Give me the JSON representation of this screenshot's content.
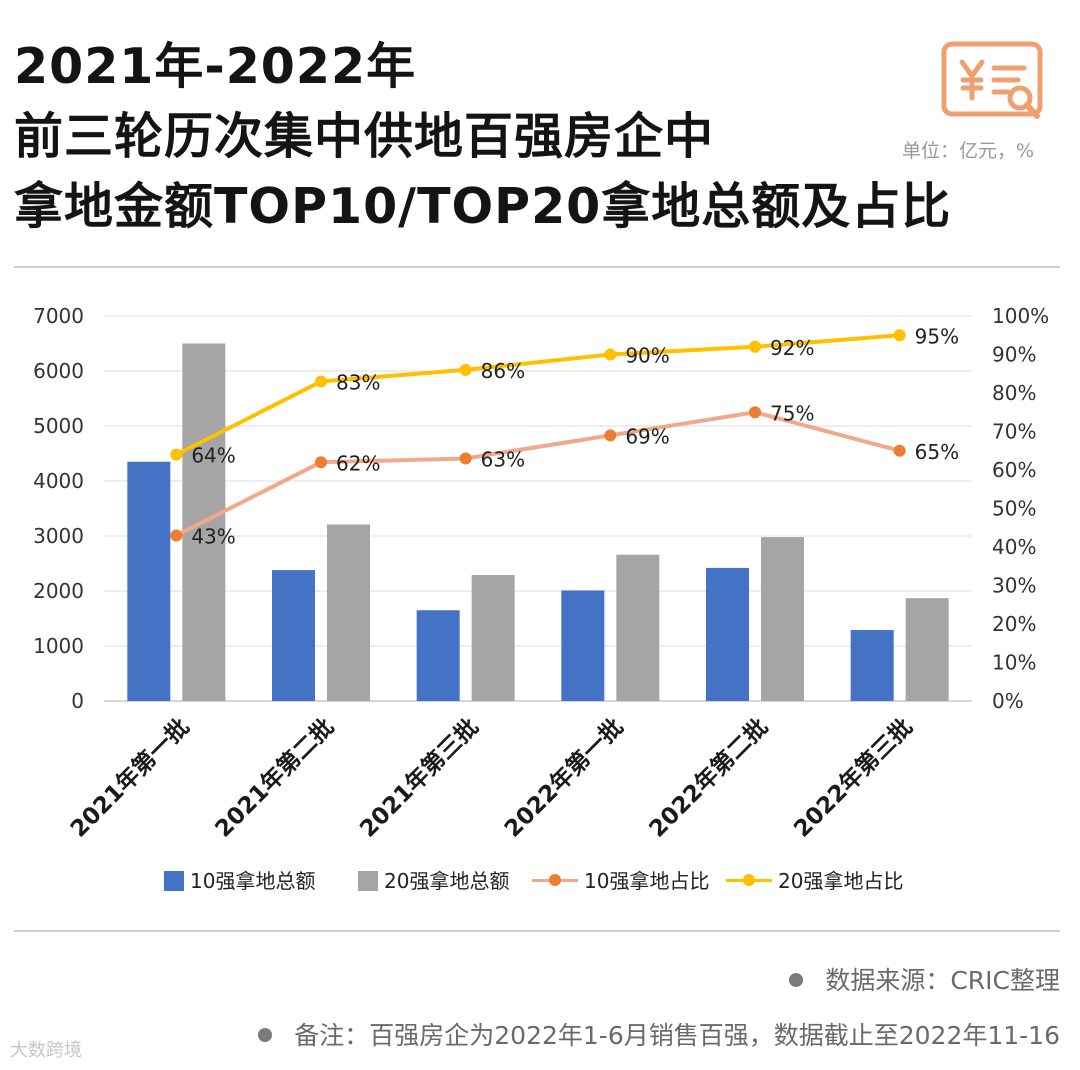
{
  "header": {
    "title_lines": [
      "2021年-2022年",
      "前三轮历次集中供地百强房企中",
      "拿地金额TOP10/TOP20拿地总额及占比"
    ],
    "unit": "单位：亿元，%"
  },
  "chart_data": {
    "type": "bar+line",
    "categories": [
      "2021年第一批",
      "2021年第二批",
      "2021年第三批",
      "2022年第一批",
      "2022年第二批",
      "2022年第三批"
    ],
    "y_left": {
      "min": 0,
      "max": 7000,
      "ticks": [
        0,
        1000,
        2000,
        3000,
        4000,
        5000,
        6000,
        7000
      ]
    },
    "y_right": {
      "min": 0,
      "max": 100,
      "ticks": [
        "0%",
        "10%",
        "20%",
        "30%",
        "40%",
        "50%",
        "60%",
        "70%",
        "80%",
        "90%",
        "100%"
      ]
    },
    "bar_series": [
      {
        "name": "10强拿地总额",
        "color": "#4472c4",
        "values": [
          4350,
          2380,
          1650,
          2010,
          2420,
          1290
        ]
      },
      {
        "name": "20强拿地总额",
        "color": "#a5a5a5",
        "values": [
          6500,
          3210,
          2290,
          2660,
          2980,
          1870
        ]
      }
    ],
    "line_series": [
      {
        "name": "10强拿地占比",
        "line_color": "#f0a98a",
        "marker_color": "#ed7d31",
        "values": [
          43,
          62,
          63,
          69,
          75,
          65
        ],
        "labels": [
          "43%",
          "62%",
          "63%",
          "69%",
          "75%",
          "65%"
        ]
      },
      {
        "name": "20强拿地占比",
        "line_color": "#ffc000",
        "marker_color": "#ffc000",
        "values": [
          64,
          83,
          86,
          90,
          92,
          95
        ],
        "labels": [
          "64%",
          "83%",
          "86%",
          "90%",
          "92%",
          "95%"
        ]
      }
    ],
    "legend_position": "bottom"
  },
  "footer": {
    "source": "数据来源：CRIC整理",
    "note": "备注：百强房企为2022年1-6月销售百强，数据截止至2022年11-16",
    "watermark": "大数跨境"
  }
}
